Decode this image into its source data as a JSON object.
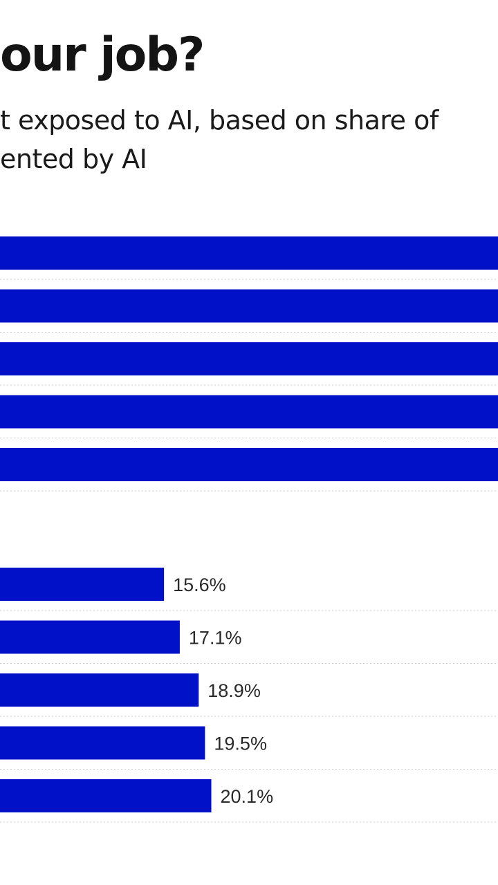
{
  "title": "our job?",
  "subtitle_lines": [
    "t exposed to AI, based on share of",
    "ented by AI"
  ],
  "colors": {
    "bar": "#0011c8",
    "gridline": "#c8c8c8",
    "text": "#1a1a1a"
  },
  "chart_data": [
    {
      "type": "bar",
      "orientation": "horizontal",
      "note": "upper group: bars run past the cropped right edge",
      "series": [
        {
          "values": [
            null,
            null,
            null,
            null,
            null
          ]
        }
      ]
    },
    {
      "type": "bar",
      "orientation": "horizontal",
      "values": [
        15.6,
        17.1,
        18.9,
        19.5,
        20.1
      ],
      "data_labels": [
        "15.6%",
        "17.1%",
        "18.9%",
        "19.5%",
        "20.1%"
      ],
      "grid": true
    }
  ]
}
